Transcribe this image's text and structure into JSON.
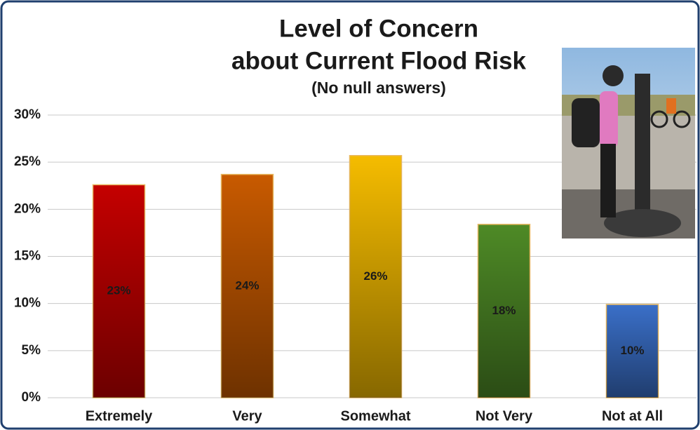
{
  "chart_data": {
    "type": "bar",
    "title": [
      "Level of Concern",
      "about Current Flood Risk"
    ],
    "subtitle": "(No null answers)",
    "categories": [
      "Extremely",
      "Very",
      "Somewhat",
      "Not Very",
      "Not at All"
    ],
    "values": [
      22.6,
      23.7,
      25.7,
      18.4,
      9.9
    ],
    "value_labels": [
      "23%",
      "24%",
      "26%",
      "18%",
      "10%"
    ],
    "colors": [
      "#c40000",
      "#c85a00",
      "#f5bc00",
      "#4e8a26",
      "#3a6fc8"
    ],
    "ylim": [
      0,
      30
    ],
    "yticks": [
      {
        "value": 0,
        "label": "0%"
      },
      {
        "value": 5,
        "label": "5%"
      },
      {
        "value": 10,
        "label": "10%"
      },
      {
        "value": 15,
        "label": "15%"
      },
      {
        "value": 20,
        "label": "20%"
      },
      {
        "value": 25,
        "label": "25%"
      },
      {
        "value": 30,
        "label": "30%"
      }
    ],
    "grid": true
  }
}
